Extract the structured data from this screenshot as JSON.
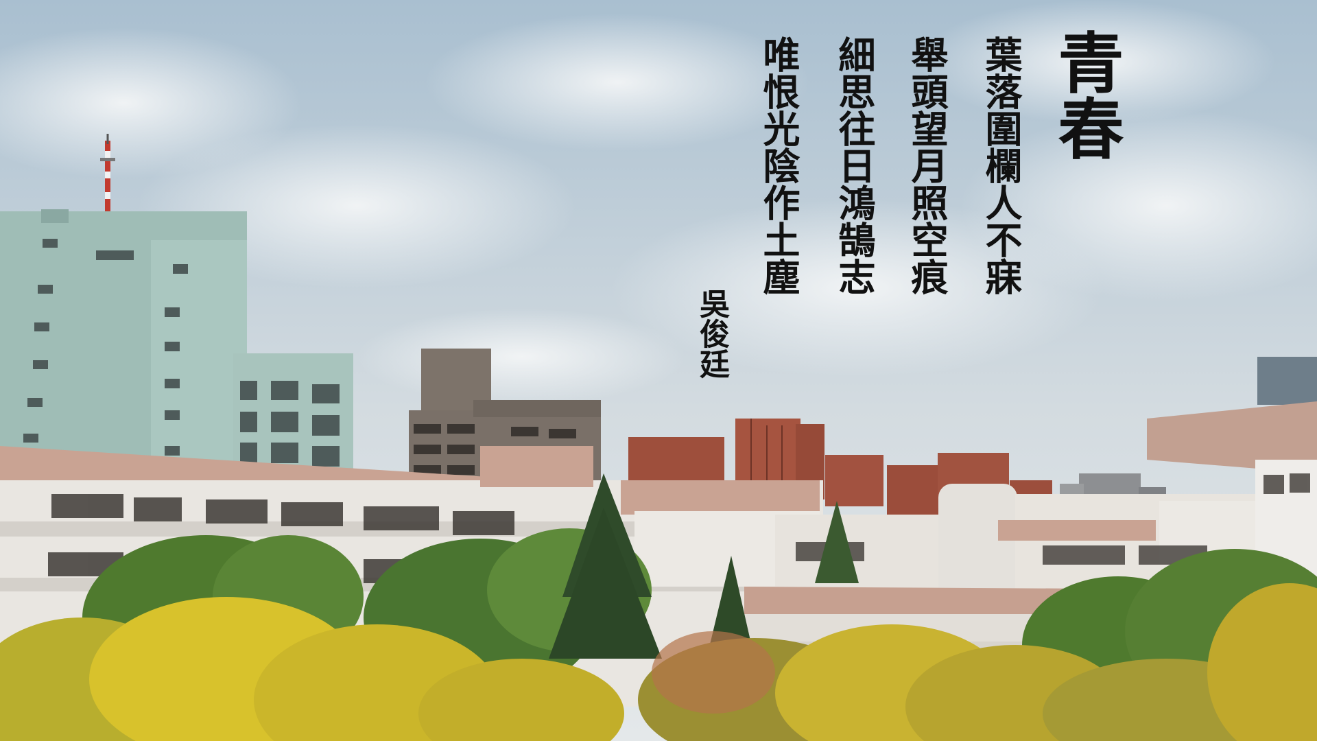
{
  "poem": {
    "title": "青春",
    "lines": [
      "葉落圍欄人不寐",
      "舉頭望月照空痕",
      "細思往日鴻鵠志",
      "唯恨光陰作土塵"
    ],
    "author": "吳俊廷"
  },
  "colors": {
    "sky_top": "#a9bfd0",
    "sky_bottom": "#dfe5e8",
    "cloud": "#eef1f3",
    "green_building": "#9fbdb6",
    "gray_building": "#7d736a",
    "brick_building": "#9e4f3c",
    "school_wall": "#e9e6e1",
    "school_roof": "#c9a393",
    "foliage_green": "#4f7a2e",
    "foliage_yellow": "#d8c22c"
  }
}
